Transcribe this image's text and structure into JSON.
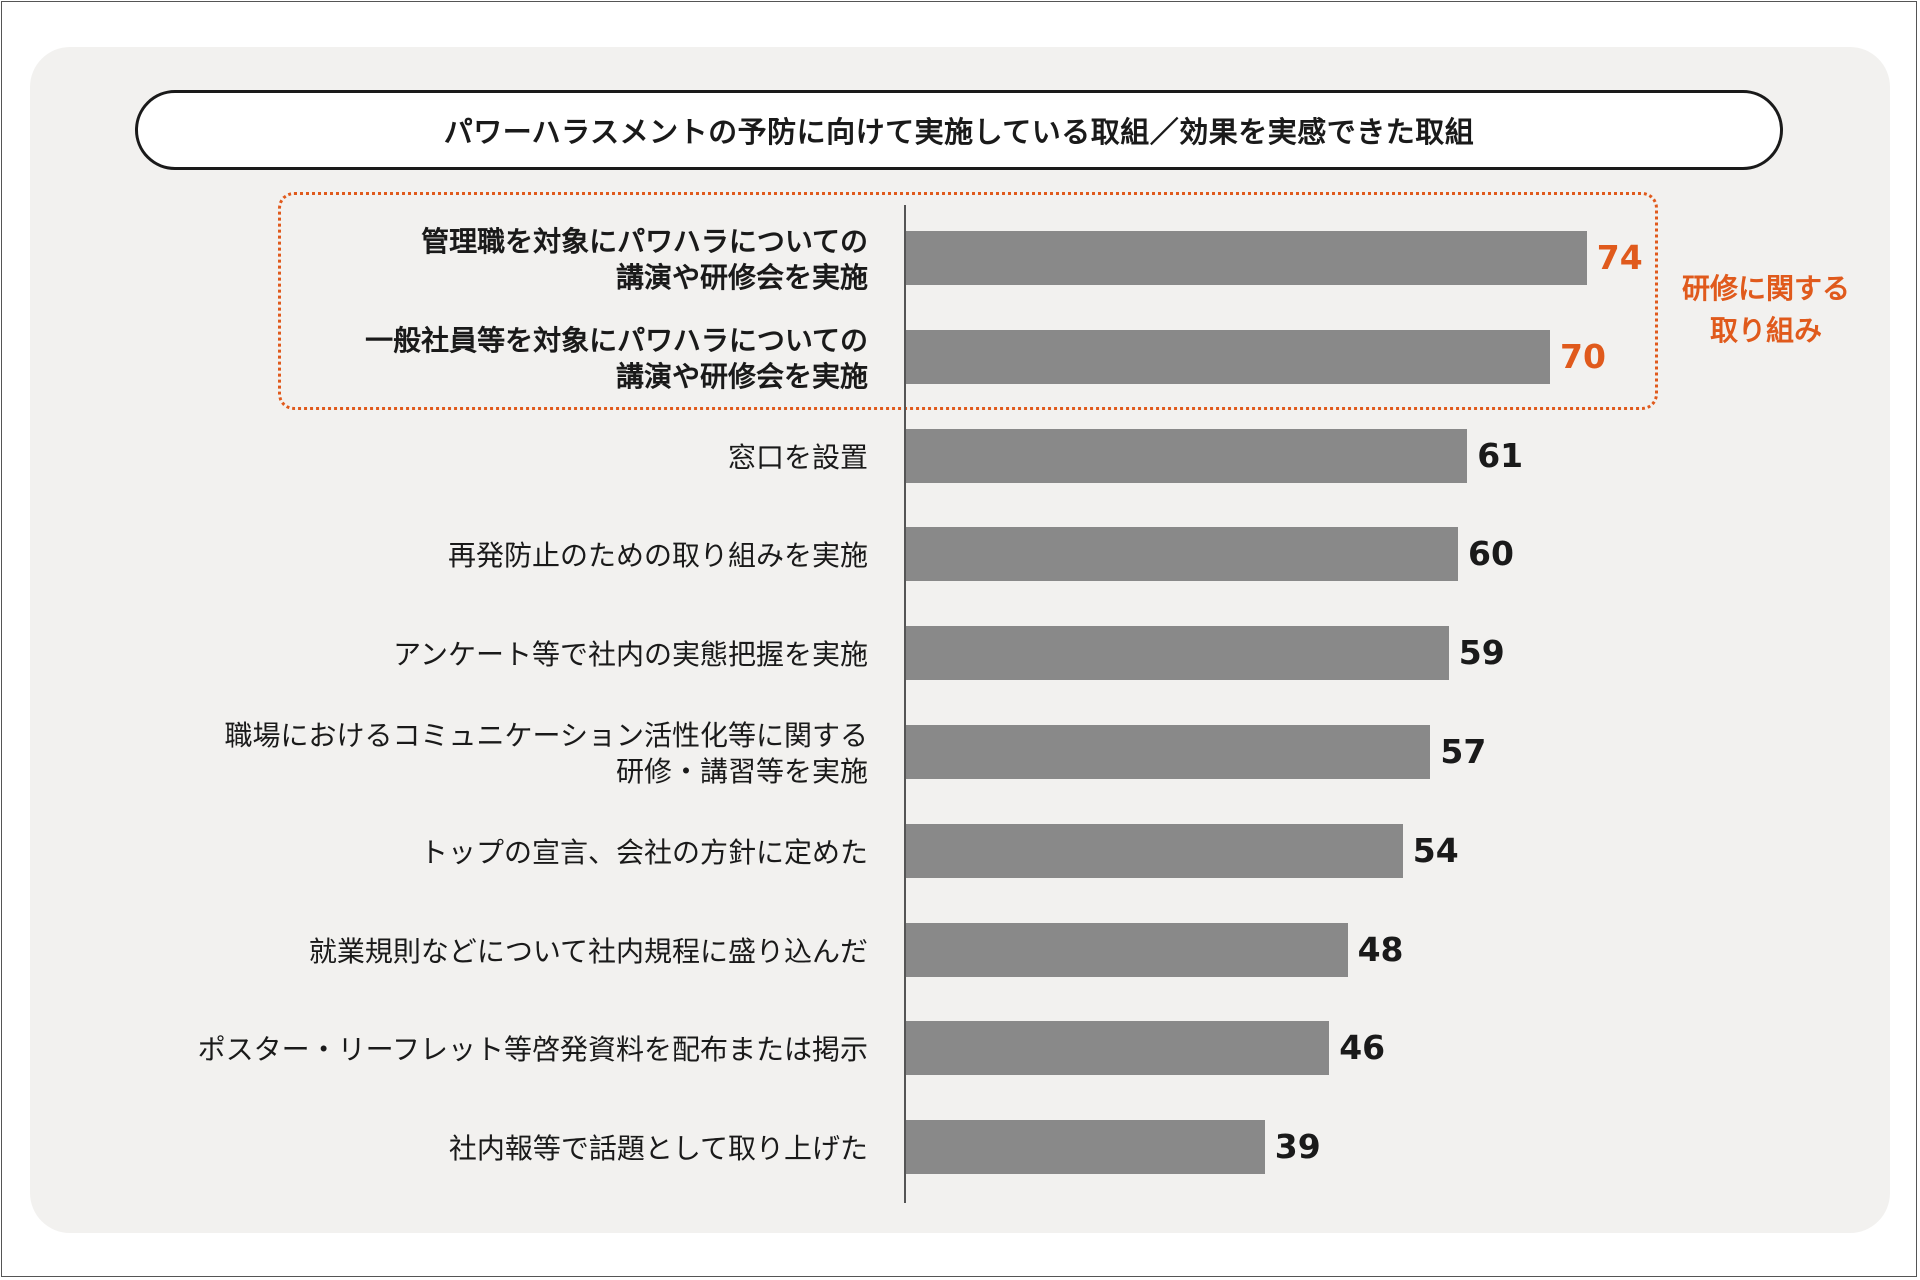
{
  "chart_data": {
    "type": "bar",
    "orientation": "horizontal",
    "title": "パワーハラスメントの予防に向けて実施している取組／効果を実感できた取組",
    "xlim": [
      0,
      100
    ],
    "categories": [
      {
        "lines": [
          "管理職を対象にパワハラについての",
          "講演や研修会を実施"
        ],
        "value": 74,
        "highlight": true
      },
      {
        "lines": [
          "一般社員等を対象にパワハラについての",
          "講演や研修会を実施"
        ],
        "value": 70,
        "highlight": true
      },
      {
        "lines": [
          "窓口を設置"
        ],
        "value": 61,
        "highlight": false
      },
      {
        "lines": [
          "再発防止のための取り組みを実施"
        ],
        "value": 60,
        "highlight": false
      },
      {
        "lines": [
          "アンケート等で社内の実態把握を実施"
        ],
        "value": 59,
        "highlight": false
      },
      {
        "lines": [
          "職場におけるコミュニケーション活性化等に関する",
          "研修・講習等を実施"
        ],
        "value": 57,
        "highlight": false
      },
      {
        "lines": [
          "トップの宣言、会社の方針に定めた"
        ],
        "value": 54,
        "highlight": false
      },
      {
        "lines": [
          "就業規則などについて社内規程に盛り込んだ"
        ],
        "value": 48,
        "highlight": false
      },
      {
        "lines": [
          "ポスター・リーフレット等啓発資料を配布または掲示"
        ],
        "value": 46,
        "highlight": false
      },
      {
        "lines": [
          "社内報等で話題として取り上げた"
        ],
        "value": 39,
        "highlight": false
      }
    ],
    "highlight_group_label": [
      "研修に関する",
      "取り組み"
    ],
    "colors": {
      "bar": "#898989",
      "highlight": "#e05a1c",
      "text": "#1a1a1a"
    }
  }
}
